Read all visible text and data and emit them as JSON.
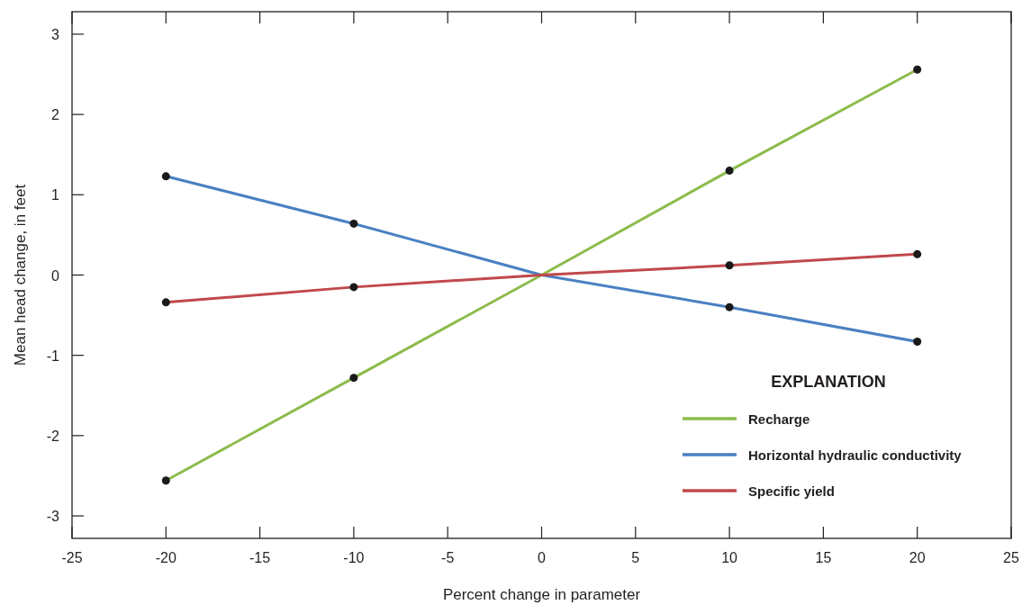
{
  "chart_data": {
    "type": "line",
    "xlabel": "Percent change in parameter",
    "ylabel": "Mean head change, in feet",
    "legend_title": "EXPLANATION",
    "legend": "bottom right",
    "grid": false,
    "line_style": "solid",
    "marker": "none",
    "xlim": [
      -25,
      25
    ],
    "xticks": [
      -25,
      -20,
      -15,
      -10,
      -5,
      0,
      5,
      10,
      15,
      20,
      25
    ],
    "ylim": [
      -3.28,
      3.28
    ],
    "yticks": [
      -3,
      -2,
      -1,
      0,
      1,
      2,
      3
    ],
    "series": [
      {
        "name": "Recharge",
        "color": "#8dbb4c",
        "x": [
          -20,
          -10,
          0,
          10,
          20
        ],
        "values": [
          -2.56,
          -1.28,
          0,
          1.3,
          2.56
        ]
      },
      {
        "name": "Horizontal hydraulic conductivity",
        "color": "#4a80c2",
        "x": [
          -20,
          -10,
          0,
          10,
          20
        ],
        "values": [
          1.23,
          0.64,
          0,
          -0.4,
          -0.83
        ]
      },
      {
        "name": "Specific yield",
        "color": "#c1484b",
        "x": [
          -20,
          -10,
          0,
          10,
          20
        ],
        "values": [
          -0.34,
          -0.15,
          0,
          0.12,
          0.26
        ]
      },
      {
        "type": "scatter",
        "marker": "circle",
        "color": "#1a1a1a",
        "x": [
          -20,
          -10,
          10,
          20,
          -20,
          -10,
          10,
          20,
          -20,
          -10,
          10,
          20
        ],
        "values": [
          -2.56,
          -1.28,
          1.3,
          2.56,
          1.23,
          0.64,
          -0.4,
          -0.83,
          -0.34,
          -0.15,
          0.12,
          0.26
        ]
      }
    ]
  }
}
